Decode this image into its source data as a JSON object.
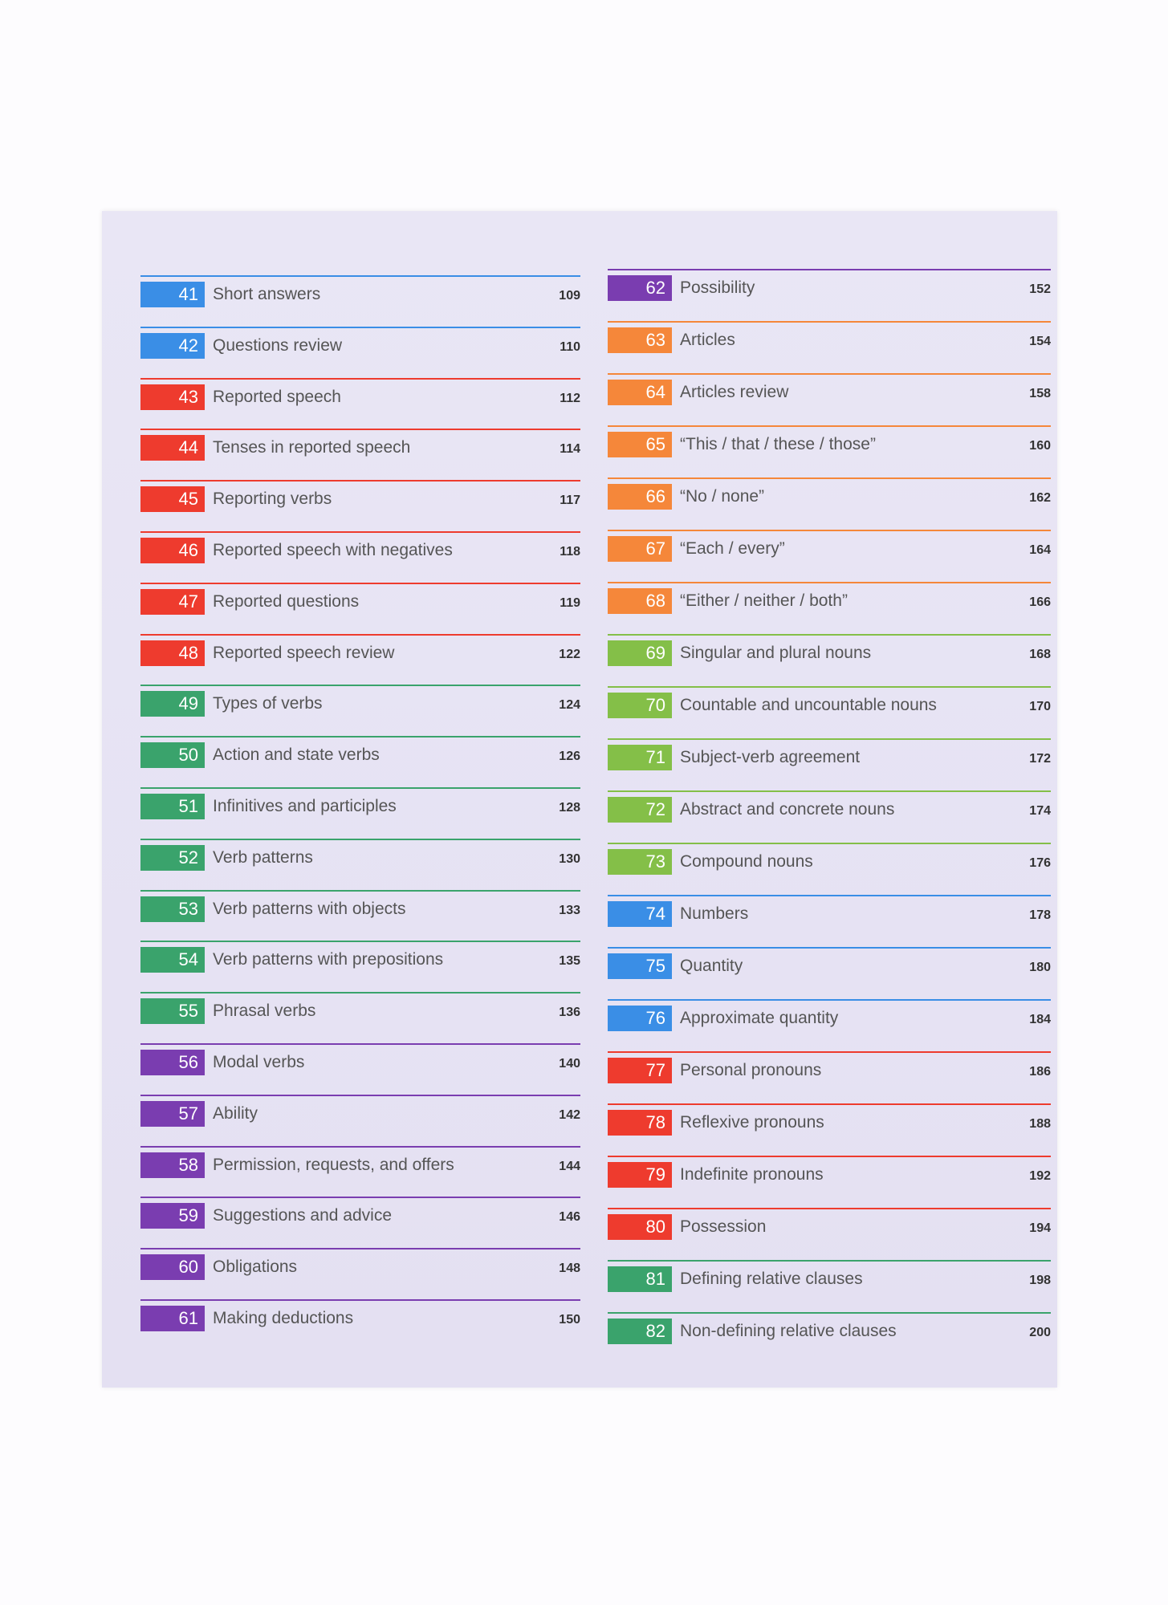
{
  "contents": {
    "left": [
      {
        "number": "41",
        "title": "Short answers",
        "page": "109",
        "color": "#3a8ee6"
      },
      {
        "number": "42",
        "title": "Questions review",
        "page": "110",
        "color": "#3a8ee6"
      },
      {
        "number": "43",
        "title": "Reported speech",
        "page": "112",
        "color": "#ee3b2e"
      },
      {
        "number": "44",
        "title": "Tenses in reported speech",
        "page": "114",
        "color": "#ee3b2e"
      },
      {
        "number": "45",
        "title": "Reporting verbs",
        "page": "117",
        "color": "#ee3b2e"
      },
      {
        "number": "46",
        "title": "Reported speech with negatives",
        "page": "118",
        "color": "#ee3b2e"
      },
      {
        "number": "47",
        "title": "Reported questions",
        "page": "119",
        "color": "#ee3b2e"
      },
      {
        "number": "48",
        "title": "Reported speech review",
        "page": "122",
        "color": "#ee3b2e"
      },
      {
        "number": "49",
        "title": "Types of verbs",
        "page": "124",
        "color": "#3aa36c"
      },
      {
        "number": "50",
        "title": "Action and state verbs",
        "page": "126",
        "color": "#3aa36c"
      },
      {
        "number": "51",
        "title": "Infinitives and participles",
        "page": "128",
        "color": "#3aa36c"
      },
      {
        "number": "52",
        "title": "Verb patterns",
        "page": "130",
        "color": "#3aa36c"
      },
      {
        "number": "53",
        "title": "Verb patterns with objects",
        "page": "133",
        "color": "#3aa36c"
      },
      {
        "number": "54",
        "title": "Verb patterns with prepositions",
        "page": "135",
        "color": "#3aa36c"
      },
      {
        "number": "55",
        "title": "Phrasal verbs",
        "page": "136",
        "color": "#3aa36c"
      },
      {
        "number": "56",
        "title": "Modal verbs",
        "page": "140",
        "color": "#7a3db0"
      },
      {
        "number": "57",
        "title": "Ability",
        "page": "142",
        "color": "#7a3db0"
      },
      {
        "number": "58",
        "title": "Permission, requests, and offers",
        "page": "144",
        "color": "#7a3db0"
      },
      {
        "number": "59",
        "title": "Suggestions and advice",
        "page": "146",
        "color": "#7a3db0"
      },
      {
        "number": "60",
        "title": "Obligations",
        "page": "148",
        "color": "#7a3db0"
      },
      {
        "number": "61",
        "title": "Making deductions",
        "page": "150",
        "color": "#7a3db0"
      }
    ],
    "right": [
      {
        "number": "62",
        "title": "Possibility",
        "page": "152",
        "color": "#7a3db0"
      },
      {
        "number": "63",
        "title": "Articles",
        "page": "154",
        "color": "#f5873a"
      },
      {
        "number": "64",
        "title": "Articles review",
        "page": "158",
        "color": "#f5873a"
      },
      {
        "number": "65",
        "title": "“This / that / these / those”",
        "page": "160",
        "color": "#f5873a"
      },
      {
        "number": "66",
        "title": "“No / none”",
        "page": "162",
        "color": "#f5873a"
      },
      {
        "number": "67",
        "title": "“Each / every”",
        "page": "164",
        "color": "#f5873a"
      },
      {
        "number": "68",
        "title": "“Either / neither / both”",
        "page": "166",
        "color": "#f5873a"
      },
      {
        "number": "69",
        "title": "Singular and plural nouns",
        "page": "168",
        "color": "#84bf48"
      },
      {
        "number": "70",
        "title": "Countable and uncountable nouns",
        "page": "170",
        "color": "#84bf48"
      },
      {
        "number": "71",
        "title": "Subject-verb agreement",
        "page": "172",
        "color": "#84bf48"
      },
      {
        "number": "72",
        "title": "Abstract and concrete nouns",
        "page": "174",
        "color": "#84bf48"
      },
      {
        "number": "73",
        "title": "Compound nouns",
        "page": "176",
        "color": "#84bf48"
      },
      {
        "number": "74",
        "title": "Numbers",
        "page": "178",
        "color": "#3a8ee6"
      },
      {
        "number": "75",
        "title": "Quantity",
        "page": "180",
        "color": "#3a8ee6"
      },
      {
        "number": "76",
        "title": "Approximate quantity",
        "page": "184",
        "color": "#3a8ee6"
      },
      {
        "number": "77",
        "title": "Personal pronouns",
        "page": "186",
        "color": "#ee3b2e"
      },
      {
        "number": "78",
        "title": "Reflexive pronouns",
        "page": "188",
        "color": "#ee3b2e"
      },
      {
        "number": "79",
        "title": "Indefinite pronouns",
        "page": "192",
        "color": "#ee3b2e"
      },
      {
        "number": "80",
        "title": "Possession",
        "page": "194",
        "color": "#ee3b2e"
      },
      {
        "number": "81",
        "title": "Defining relative clauses",
        "page": "198",
        "color": "#3aa36c"
      },
      {
        "number": "82",
        "title": "Non-defining relative clauses",
        "page": "200",
        "color": "#3aa36c"
      }
    ]
  }
}
